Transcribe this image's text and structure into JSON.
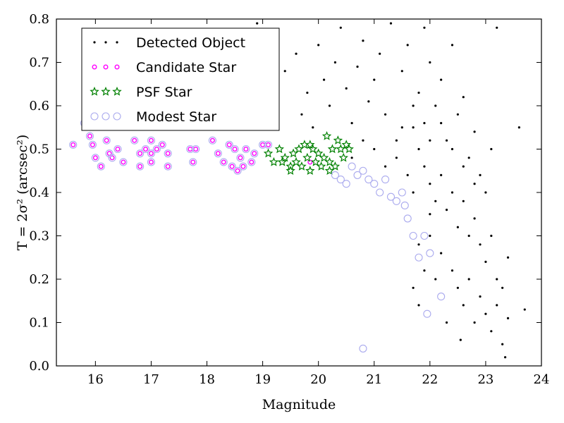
{
  "chart_data": {
    "type": "scatter",
    "xlabel": "Magnitude",
    "ylabel": "T = 2σ² (arcsec²)",
    "xlim": [
      15.3,
      24
    ],
    "ylim": [
      0.0,
      0.8
    ],
    "xticks": [
      16,
      17,
      18,
      19,
      20,
      21,
      22,
      23,
      24
    ],
    "yticks": [
      0.0,
      0.1,
      0.2,
      0.3,
      0.4,
      0.5,
      0.6,
      0.7,
      0.8
    ],
    "legend_position": "top-left",
    "grid": false,
    "series": [
      {
        "name": "Detected Object",
        "marker": "dot",
        "color": "#000000",
        "points": [
          [
            18.5,
            0.77
          ],
          [
            18.9,
            0.79
          ],
          [
            19.2,
            0.75
          ],
          [
            19.4,
            0.68
          ],
          [
            19.6,
            0.72
          ],
          [
            19.8,
            0.63
          ],
          [
            19.7,
            0.58
          ],
          [
            19.9,
            0.55
          ],
          [
            20.0,
            0.74
          ],
          [
            20.1,
            0.66
          ],
          [
            20.2,
            0.6
          ],
          [
            20.3,
            0.7
          ],
          [
            20.4,
            0.78
          ],
          [
            20.5,
            0.64
          ],
          [
            20.6,
            0.56
          ],
          [
            20.7,
            0.69
          ],
          [
            20.8,
            0.75
          ],
          [
            20.9,
            0.61
          ],
          [
            21.0,
            0.66
          ],
          [
            21.1,
            0.72
          ],
          [
            21.2,
            0.58
          ],
          [
            21.3,
            0.79
          ],
          [
            21.4,
            0.52
          ],
          [
            21.5,
            0.68
          ],
          [
            21.6,
            0.74
          ],
          [
            21.7,
            0.55
          ],
          [
            21.8,
            0.63
          ],
          [
            21.9,
            0.78
          ],
          [
            22.0,
            0.7
          ],
          [
            22.1,
            0.6
          ],
          [
            22.2,
            0.66
          ],
          [
            22.3,
            0.52
          ],
          [
            22.4,
            0.74
          ],
          [
            22.5,
            0.58
          ],
          [
            22.6,
            0.62
          ],
          [
            22.7,
            0.48
          ],
          [
            22.8,
            0.54
          ],
          [
            22.9,
            0.44
          ],
          [
            23.0,
            0.4
          ],
          [
            23.1,
            0.5
          ],
          [
            23.2,
            0.78
          ],
          [
            23.6,
            0.55
          ],
          [
            20.6,
            0.48
          ],
          [
            20.8,
            0.52
          ],
          [
            21.0,
            0.5
          ],
          [
            21.2,
            0.46
          ],
          [
            21.4,
            0.48
          ],
          [
            21.6,
            0.44
          ],
          [
            21.7,
            0.4
          ],
          [
            21.8,
            0.5
          ],
          [
            21.9,
            0.46
          ],
          [
            22.0,
            0.42
          ],
          [
            22.1,
            0.38
          ],
          [
            22.2,
            0.44
          ],
          [
            22.3,
            0.36
          ],
          [
            22.4,
            0.4
          ],
          [
            22.5,
            0.32
          ],
          [
            22.6,
            0.38
          ],
          [
            22.7,
            0.3
          ],
          [
            22.8,
            0.34
          ],
          [
            22.9,
            0.28
          ],
          [
            23.0,
            0.24
          ],
          [
            23.1,
            0.3
          ],
          [
            23.2,
            0.2
          ],
          [
            23.3,
            0.18
          ],
          [
            23.4,
            0.25
          ],
          [
            21.5,
            0.55
          ],
          [
            21.7,
            0.6
          ],
          [
            21.9,
            0.56
          ],
          [
            22.0,
            0.52
          ],
          [
            22.2,
            0.56
          ],
          [
            22.4,
            0.5
          ],
          [
            22.6,
            0.46
          ],
          [
            22.8,
            0.42
          ],
          [
            22.0,
            0.3
          ],
          [
            22.2,
            0.26
          ],
          [
            22.4,
            0.22
          ],
          [
            22.5,
            0.18
          ],
          [
            22.6,
            0.14
          ],
          [
            22.7,
            0.2
          ],
          [
            22.8,
            0.1
          ],
          [
            22.9,
            0.16
          ],
          [
            23.0,
            0.12
          ],
          [
            23.1,
            0.08
          ],
          [
            23.2,
            0.14
          ],
          [
            23.3,
            0.05
          ],
          [
            23.35,
            0.02
          ],
          [
            23.7,
            0.13
          ],
          [
            22.55,
            0.06
          ],
          [
            22.0,
            0.35
          ],
          [
            21.8,
            0.28
          ],
          [
            21.9,
            0.22
          ],
          [
            22.1,
            0.2
          ],
          [
            21.7,
            0.18
          ],
          [
            21.8,
            0.14
          ],
          [
            22.3,
            0.1
          ],
          [
            23.4,
            0.11
          ]
        ]
      },
      {
        "name": "Candidate Star",
        "marker": "small-circle",
        "color": "#ff00ff",
        "points": [
          [
            15.6,
            0.51
          ],
          [
            15.8,
            0.56
          ],
          [
            15.9,
            0.53
          ],
          [
            15.95,
            0.51
          ],
          [
            16.0,
            0.48
          ],
          [
            16.1,
            0.46
          ],
          [
            16.2,
            0.52
          ],
          [
            16.25,
            0.49
          ],
          [
            16.3,
            0.48
          ],
          [
            16.4,
            0.5
          ],
          [
            16.5,
            0.47
          ],
          [
            16.7,
            0.52
          ],
          [
            16.8,
            0.49
          ],
          [
            16.8,
            0.46
          ],
          [
            16.9,
            0.5
          ],
          [
            17.0,
            0.49
          ],
          [
            17.0,
            0.47
          ],
          [
            17.1,
            0.5
          ],
          [
            17.2,
            0.51
          ],
          [
            17.3,
            0.49
          ],
          [
            17.3,
            0.46
          ],
          [
            17.7,
            0.5
          ],
          [
            17.75,
            0.47
          ],
          [
            17.8,
            0.5
          ],
          [
            18.1,
            0.52
          ],
          [
            18.2,
            0.49
          ],
          [
            18.3,
            0.47
          ],
          [
            18.4,
            0.51
          ],
          [
            18.45,
            0.46
          ],
          [
            18.5,
            0.5
          ],
          [
            18.55,
            0.45
          ],
          [
            18.6,
            0.48
          ],
          [
            18.65,
            0.46
          ],
          [
            18.7,
            0.5
          ],
          [
            18.8,
            0.47
          ],
          [
            18.85,
            0.49
          ],
          [
            19.0,
            0.51
          ],
          [
            19.1,
            0.51
          ],
          [
            19.85,
            0.47
          ],
          [
            17.0,
            0.52
          ]
        ]
      },
      {
        "name": "PSF Star",
        "marker": "star",
        "color": "#008000",
        "points": [
          [
            19.1,
            0.49
          ],
          [
            19.2,
            0.47
          ],
          [
            19.3,
            0.5
          ],
          [
            19.35,
            0.47
          ],
          [
            19.4,
            0.48
          ],
          [
            19.5,
            0.46
          ],
          [
            19.55,
            0.49
          ],
          [
            19.6,
            0.47
          ],
          [
            19.65,
            0.5
          ],
          [
            19.7,
            0.46
          ],
          [
            19.75,
            0.51
          ],
          [
            19.8,
            0.48
          ],
          [
            19.85,
            0.45
          ],
          [
            19.9,
            0.5
          ],
          [
            19.95,
            0.47
          ],
          [
            20.0,
            0.49
          ],
          [
            20.05,
            0.46
          ],
          [
            20.1,
            0.48
          ],
          [
            20.15,
            0.53
          ],
          [
            20.2,
            0.47
          ],
          [
            20.25,
            0.5
          ],
          [
            20.3,
            0.46
          ],
          [
            20.35,
            0.52
          ],
          [
            20.4,
            0.5
          ],
          [
            20.45,
            0.48
          ],
          [
            20.5,
            0.51
          ],
          [
            20.55,
            0.5
          ],
          [
            20.2,
            0.45
          ],
          [
            19.5,
            0.45
          ],
          [
            19.85,
            0.51
          ]
        ]
      },
      {
        "name": "Modest Star",
        "marker": "open-circle",
        "color": "#aaaaee",
        "points": [
          [
            15.6,
            0.51
          ],
          [
            15.8,
            0.56
          ],
          [
            15.9,
            0.53
          ],
          [
            15.95,
            0.51
          ],
          [
            16.0,
            0.48
          ],
          [
            16.1,
            0.46
          ],
          [
            16.2,
            0.52
          ],
          [
            16.25,
            0.49
          ],
          [
            16.3,
            0.48
          ],
          [
            16.4,
            0.5
          ],
          [
            16.5,
            0.47
          ],
          [
            16.7,
            0.52
          ],
          [
            16.8,
            0.49
          ],
          [
            16.8,
            0.46
          ],
          [
            16.9,
            0.5
          ],
          [
            17.0,
            0.49
          ],
          [
            17.0,
            0.47
          ],
          [
            17.1,
            0.5
          ],
          [
            17.2,
            0.51
          ],
          [
            17.3,
            0.49
          ],
          [
            17.3,
            0.46
          ],
          [
            17.7,
            0.5
          ],
          [
            17.75,
            0.47
          ],
          [
            17.8,
            0.5
          ],
          [
            18.1,
            0.52
          ],
          [
            18.2,
            0.49
          ],
          [
            18.3,
            0.47
          ],
          [
            18.4,
            0.51
          ],
          [
            18.45,
            0.46
          ],
          [
            18.5,
            0.5
          ],
          [
            18.55,
            0.45
          ],
          [
            18.6,
            0.48
          ],
          [
            18.65,
            0.46
          ],
          [
            18.7,
            0.5
          ],
          [
            18.8,
            0.47
          ],
          [
            18.85,
            0.49
          ],
          [
            19.0,
            0.51
          ],
          [
            19.1,
            0.51
          ],
          [
            17.0,
            0.52
          ],
          [
            20.3,
            0.44
          ],
          [
            20.4,
            0.43
          ],
          [
            20.5,
            0.42
          ],
          [
            20.6,
            0.46
          ],
          [
            20.7,
            0.44
          ],
          [
            20.8,
            0.45
          ],
          [
            20.9,
            0.43
          ],
          [
            21.0,
            0.42
          ],
          [
            21.1,
            0.4
          ],
          [
            21.2,
            0.43
          ],
          [
            21.3,
            0.39
          ],
          [
            21.4,
            0.38
          ],
          [
            21.5,
            0.4
          ],
          [
            21.55,
            0.37
          ],
          [
            21.6,
            0.34
          ],
          [
            21.7,
            0.3
          ],
          [
            21.8,
            0.25
          ],
          [
            21.9,
            0.3
          ],
          [
            22.0,
            0.26
          ],
          [
            21.95,
            0.12
          ],
          [
            22.2,
            0.16
          ],
          [
            20.8,
            0.04
          ]
        ]
      }
    ]
  }
}
